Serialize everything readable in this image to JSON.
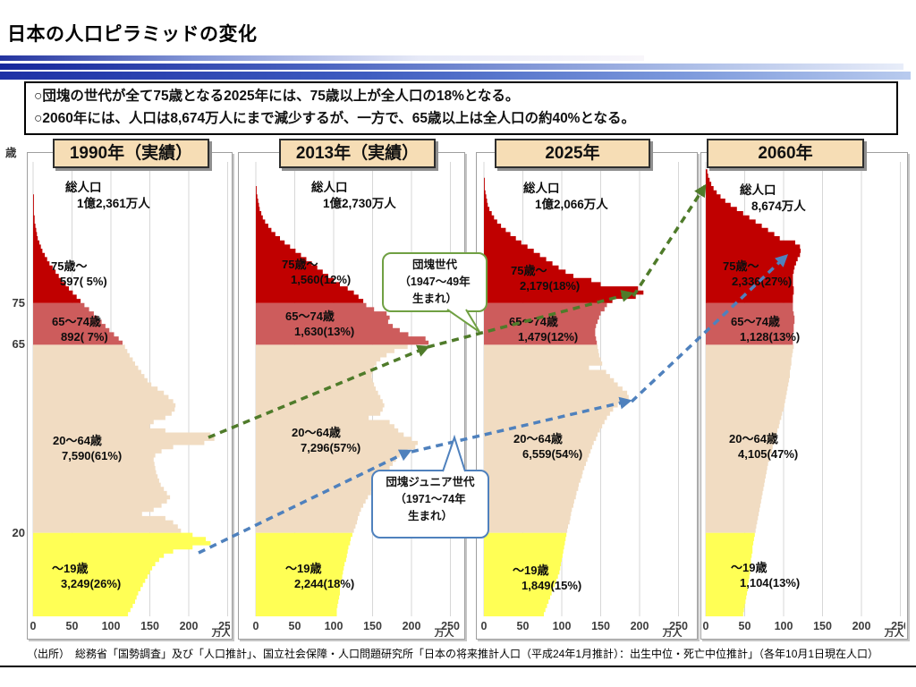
{
  "title": "日本の人口ピラミッドの変化",
  "summary_box": {
    "lines": [
      "○団塊の世代が全て75歳となる2025年には、75歳以上が全人口の18%となる。",
      "○2060年には、人口は8,674万人にまで減少するが、一方で、65歳以上は全人口の約40%となる。"
    ]
  },
  "y_axis": {
    "unit": "歳",
    "ticks": [
      "75",
      "65",
      "20"
    ]
  },
  "x_axis": {
    "ticks": [
      "0",
      "50",
      "100",
      "150",
      "200",
      "250"
    ],
    "unit": "万人"
  },
  "callouts": {
    "dankai": {
      "lines": [
        "団塊世代",
        "（1947～49年",
        "生まれ）"
      ]
    },
    "junior": {
      "lines": [
        "団塊ジュニア世代",
        "（1971～74年",
        "生まれ）"
      ]
    }
  },
  "source": "（出所）　総務省「国勢調査」及び「人口推計」、国立社会保障・人口問題研究所「日本の将来推計人口（平成24年1月推計）：出生中位・死亡中位推計」（各年10月1日現在人口）",
  "colors": {
    "band_75plus": "#C00000",
    "band_65_74": "#CD5C5C",
    "band_20_64": "#F1DCC2",
    "band_0_19": "#FFFF55",
    "arrow_green": "#4F7B2A",
    "arrow_blue": "#4F81BD",
    "callout_green_border": "#70A043",
    "callout_blue_border": "#4F81BD",
    "header_bg": "#F6DDB5"
  },
  "chart_data": {
    "type": "bar",
    "subtype": "population-pyramid-series",
    "unit": "万人",
    "age_axis_unit": "歳",
    "x_range": [
      0,
      250
    ],
    "grid": true,
    "profile_estimated": true,
    "panels": [
      {
        "year_label": "1990年（実績）",
        "total_label": "総人口",
        "total_value": "1億2,361万人",
        "groups": [
          {
            "label": "75歳～",
            "value": "597( 5%)"
          },
          {
            "label": "65～74歳",
            "value": "892( 7%)"
          },
          {
            "label": "20～64歳",
            "value": "7,590(61%)"
          },
          {
            "label": "～19歳",
            "value": "3,249(26%)"
          }
        ],
        "profile": [
          122,
          125,
          128,
          131,
          133,
          135,
          138,
          141,
          144,
          147,
          150,
          153,
          157,
          162,
          168,
          180,
          205,
          228,
          222,
          205,
          190,
          186,
          180,
          170,
          140,
          155,
          165,
          172,
          176,
          172,
          168,
          164,
          162,
          160,
          158,
          157,
          156,
          155,
          157,
          165,
          180,
          220,
          233,
          228,
          170,
          150,
          155,
          170,
          178,
          182,
          183,
          180,
          174,
          168,
          160,
          152,
          147,
          143,
          139,
          135,
          131,
          128,
          124,
          121,
          118,
          115,
          110,
          104,
          98,
          93,
          88,
          83,
          78,
          72,
          66,
          61,
          56,
          51,
          46,
          42,
          37,
          33,
          29,
          25,
          21,
          18,
          15,
          12,
          10,
          8,
          6,
          5,
          4,
          3,
          2,
          2,
          1,
          1,
          1,
          1,
          1,
          0,
          0,
          0,
          0
        ]
      },
      {
        "year_label": "2013年（実績）",
        "total_label": "総人口",
        "total_value": "1億2,730万人",
        "groups": [
          {
            "label": "75歳～",
            "value": "1,560(12%)"
          },
          {
            "label": "65～74歳",
            "value": "1,630(13%)"
          },
          {
            "label": "20～64歳",
            "value": "7,296(57%)"
          },
          {
            "label": "～19歳",
            "value": "2,244(18%)"
          }
        ],
        "profile": [
          104,
          104,
          105,
          106,
          107,
          108,
          108,
          109,
          110,
          111,
          112,
          113,
          114,
          116,
          117,
          118,
          119,
          121,
          122,
          124,
          126,
          128,
          130,
          131,
          133,
          135,
          138,
          141,
          144,
          148,
          152,
          156,
          159,
          163,
          167,
          172,
          176,
          180,
          185,
          195,
          205,
          208,
          200,
          190,
          183,
          178,
          172,
          145,
          160,
          163,
          165,
          163,
          160,
          157,
          154,
          152,
          150,
          149,
          150,
          152,
          155,
          160,
          168,
          178,
          195,
          222,
          218,
          196,
          185,
          176,
          170,
          172,
          168,
          152,
          142,
          138,
          132,
          126,
          118,
          108,
          100,
          93,
          86,
          79,
          72,
          65,
          58,
          51,
          44,
          37,
          31,
          25,
          20,
          16,
          12,
          9,
          7,
          5,
          4,
          3,
          2,
          1,
          1
        ]
      },
      {
        "year_label": "2025年",
        "total_label": "総人口",
        "total_value": "1億2,066万人",
        "groups": [
          {
            "label": "75歳～",
            "value": "2,179(18%)"
          },
          {
            "label": "65～74歳",
            "value": "1,479(12%)"
          },
          {
            "label": "20～64歳",
            "value": "6,559(54%)"
          },
          {
            "label": "～19歳",
            "value": "1,849(15%)"
          }
        ],
        "profile": [
          77,
          79,
          81,
          83,
          85,
          87,
          89,
          91,
          93,
          95,
          97,
          98,
          99,
          100,
          101,
          102,
          103,
          104,
          105,
          106,
          107,
          108,
          110,
          111,
          112,
          113,
          115,
          116,
          118,
          119,
          121,
          122,
          124,
          126,
          127,
          129,
          131,
          133,
          135,
          137,
          139,
          141,
          144,
          146,
          149,
          152,
          155,
          158,
          162,
          166,
          172,
          180,
          186,
          184,
          178,
          172,
          167,
          162,
          157,
          135,
          152,
          150,
          148,
          147,
          146,
          145,
          144,
          143,
          143,
          144,
          146,
          148,
          150,
          155,
          158,
          165,
          195,
          205,
          198,
          150,
          138,
          115,
          105,
          96,
          88,
          80,
          72,
          64,
          56,
          48,
          41,
          34,
          28,
          22,
          17,
          13,
          10,
          7,
          5,
          4,
          3,
          2,
          1,
          1,
          1,
          0
        ]
      },
      {
        "year_label": "2060年",
        "total_label": "総人口",
        "total_value": "8,674万人",
        "groups": [
          {
            "label": "75歳～",
            "value": "2,336(27%)"
          },
          {
            "label": "65～74歳",
            "value": "1,128(13%)"
          },
          {
            "label": "20～64歳",
            "value": "4,105(47%)"
          },
          {
            "label": "～19歳",
            "value": "1,104(13%)"
          }
        ],
        "profile": [
          48,
          49,
          50,
          51,
          52,
          53,
          54,
          54,
          55,
          56,
          57,
          57,
          58,
          58,
          59,
          60,
          60,
          61,
          62,
          63,
          64,
          65,
          66,
          67,
          68,
          69,
          70,
          71,
          72,
          73,
          74,
          75,
          76,
          77,
          78,
          79,
          80,
          82,
          83,
          85,
          86,
          88,
          89,
          91,
          92,
          94,
          95,
          97,
          98,
          100,
          101,
          102,
          103,
          104,
          105,
          106,
          107,
          108,
          108,
          109,
          110,
          110,
          111,
          112,
          113,
          112,
          112,
          112,
          113,
          113,
          114,
          114,
          113,
          112,
          112,
          112,
          112,
          113,
          113,
          112,
          112,
          112,
          113,
          114,
          116,
          118,
          121,
          122,
          121,
          115,
          95,
          88,
          80,
          72,
          64,
          56,
          48,
          40,
          32,
          25,
          19,
          14,
          10,
          7,
          5,
          3,
          2
        ]
      }
    ]
  }
}
